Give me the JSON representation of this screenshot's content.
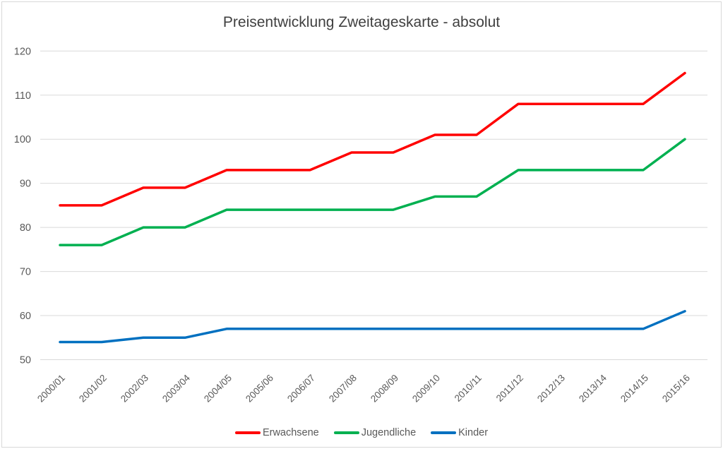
{
  "chart_data": {
    "type": "line",
    "title": "Preisentwicklung Zweitageskarte - absolut",
    "categories": [
      "2000/01",
      "2001/02",
      "2002/03",
      "2003/04",
      "2004/05",
      "2005/06",
      "2006/07",
      "2007/08",
      "2008/09",
      "2009/10",
      "2010/11",
      "2011/12",
      "2012/13",
      "2013/14",
      "2014/15",
      "2015/16"
    ],
    "series": [
      {
        "name": "Erwachsene",
        "color": "#FF0000",
        "values": [
          85,
          85,
          89,
          89,
          93,
          93,
          93,
          97,
          97,
          101,
          101,
          108,
          108,
          108,
          108,
          115
        ]
      },
      {
        "name": "Jugendliche",
        "color": "#00B050",
        "values": [
          76,
          76,
          80,
          80,
          84,
          84,
          84,
          84,
          84,
          87,
          87,
          93,
          93,
          93,
          93,
          100
        ]
      },
      {
        "name": "Kinder",
        "color": "#0070C0",
        "values": [
          54,
          54,
          55,
          55,
          57,
          57,
          57,
          57,
          57,
          57,
          57,
          57,
          57,
          57,
          57,
          61
        ]
      }
    ],
    "ylim": [
      50,
      120
    ],
    "ytick_step": 10,
    "yticks": [
      50,
      60,
      70,
      80,
      90,
      100,
      110,
      120
    ],
    "xlabel": "",
    "ylabel": "",
    "grid": true,
    "legend_position": "bottom"
  },
  "style": {
    "background": "#FFFFFF",
    "border_color": "#D9D9D9",
    "gridline_color": "#D9D9D9",
    "axis_label_color": "#595959",
    "title_color": "#404040",
    "legend_text_color": "#595959"
  }
}
